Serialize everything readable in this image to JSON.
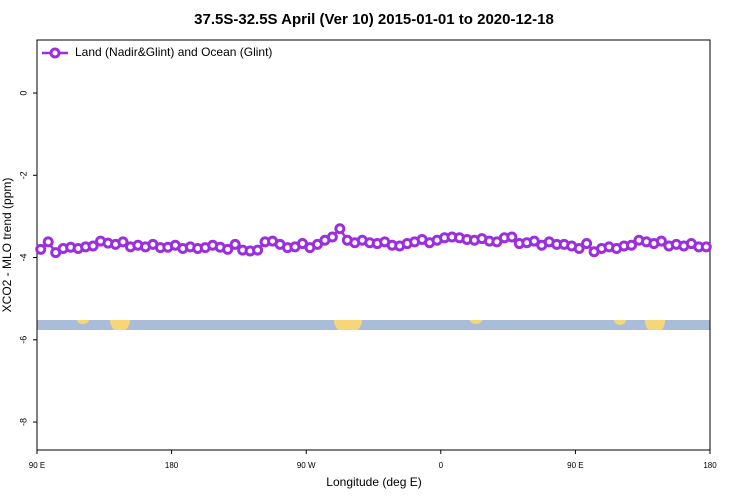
{
  "chart_data": {
    "type": "line",
    "title": "37.5S-32.5S April (Ver 10)   2015-01-01 to 2020-12-18",
    "x_label": "Longitude (deg E)",
    "y_label": "XCO2 - MLO trend (ppm)",
    "x": [
      92.5,
      97.5,
      102.5,
      107.5,
      112.5,
      117.5,
      122.5,
      127.5,
      132.5,
      137.5,
      142.5,
      147.5,
      152.5,
      157.5,
      162.5,
      167.5,
      172.5,
      177.5,
      182.5,
      187.5,
      192.5,
      197.5,
      202.5,
      207.5,
      212.5,
      217.5,
      222.5,
      227.5,
      232.5,
      237.5,
      242.5,
      247.5,
      252.5,
      257.5,
      262.5,
      267.5,
      272.5,
      277.5,
      282.5,
      287.5,
      292.5,
      297.5,
      302.5,
      307.5,
      312.5,
      317.5,
      322.5,
      327.5,
      332.5,
      337.5,
      342.5,
      347.5,
      352.5,
      357.5,
      362.5,
      367.5,
      372.5,
      377.5,
      382.5,
      387.5,
      392.5,
      397.5,
      402.5,
      407.5,
      412.5,
      417.5,
      422.5,
      427.5,
      432.5,
      437.5,
      442.5,
      447.5,
      452.5,
      457.5,
      462.5,
      467.5,
      472.5,
      477.5,
      482.5,
      487.5,
      492.5,
      497.5,
      502.5,
      507.5,
      512.5,
      517.5,
      522.5,
      527.5,
      532.5,
      537.5
    ],
    "series": [
      {
        "name": "Land (Nadir&Glint) and Ocean (Glint)",
        "color": "#9b2fe0",
        "values": [
          -3.8,
          -3.62,
          -3.88,
          -3.78,
          -3.75,
          -3.78,
          -3.74,
          -3.72,
          -3.6,
          -3.65,
          -3.68,
          -3.62,
          -3.74,
          -3.7,
          -3.74,
          -3.68,
          -3.76,
          -3.75,
          -3.7,
          -3.78,
          -3.74,
          -3.78,
          -3.76,
          -3.7,
          -3.75,
          -3.8,
          -3.68,
          -3.82,
          -3.84,
          -3.82,
          -3.62,
          -3.6,
          -3.68,
          -3.76,
          -3.74,
          -3.66,
          -3.76,
          -3.68,
          -3.58,
          -3.5,
          -3.3,
          -3.58,
          -3.64,
          -3.58,
          -3.64,
          -3.66,
          -3.62,
          -3.7,
          -3.72,
          -3.66,
          -3.62,
          -3.56,
          -3.64,
          -3.58,
          -3.52,
          -3.5,
          -3.52,
          -3.56,
          -3.58,
          -3.54,
          -3.6,
          -3.62,
          -3.52,
          -3.5,
          -3.66,
          -3.64,
          -3.6,
          -3.7,
          -3.62,
          -3.68,
          -3.68,
          -3.72,
          -3.78,
          -3.66,
          -3.86,
          -3.78,
          -3.74,
          -3.78,
          -3.72,
          -3.7,
          -3.58,
          -3.62,
          -3.66,
          -3.6,
          -3.72,
          -3.68,
          -3.72,
          -3.66,
          -3.74,
          -3.74
        ]
      }
    ],
    "xlim": [
      90,
      540
    ],
    "xticks": [
      {
        "value": 90,
        "label": "90 E"
      },
      180,
      {
        "value": 270,
        "label": "90 W"
      },
      {
        "value": 360,
        "label": "0"
      },
      {
        "value": 450,
        "label": "90 E"
      },
      {
        "value": 540,
        "label": "180"
      }
    ],
    "ylim": [
      -8.68,
      1.29
    ],
    "yticks": [
      0,
      -2,
      -4,
      -6,
      -8
    ],
    "legend": "top-left"
  }
}
